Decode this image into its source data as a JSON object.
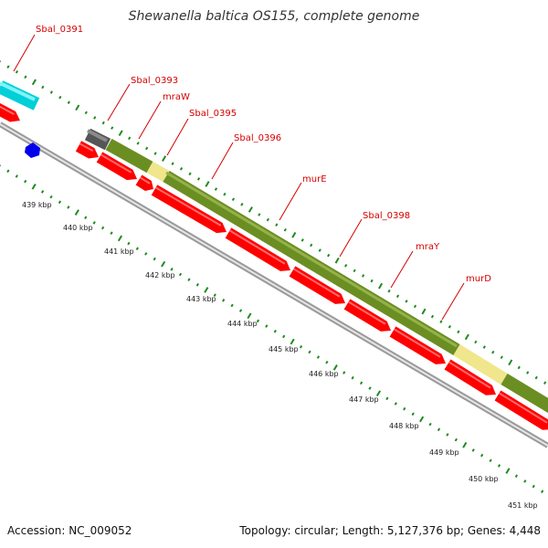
{
  "header": {
    "title": "Shewanella baltica OS155, complete genome"
  },
  "footer": {
    "accession": "Accession: NC_009052",
    "summary": "Topology: circular; Length: 5,127,376 bp; Genes: 4,448"
  },
  "colors": {
    "cds": "#ff0000",
    "cds_light": "#ff6b6b",
    "cyan_feature": "#00e5ee",
    "olive_feature": "#6b8e23",
    "pale_feature": "#f0e68c",
    "gray_feature": "#555555",
    "blue_marker": "#0000ee",
    "tick_green": "#1e8c1e",
    "label_red": "#d40000"
  },
  "genes": [
    {
      "label": "Sbal_0391"
    },
    {
      "label": "Sbal_0393"
    },
    {
      "label": "mraW"
    },
    {
      "label": "Sbal_0395"
    },
    {
      "label": "Sbal_0396"
    },
    {
      "label": "murE"
    },
    {
      "label": "Sbal_0398"
    },
    {
      "label": "mraY"
    },
    {
      "label": "murD"
    }
  ],
  "ruler": [
    {
      "label": "439 kbp"
    },
    {
      "label": "440 kbp"
    },
    {
      "label": "441 kbp"
    },
    {
      "label": "442 kbp"
    },
    {
      "label": "443 kbp"
    },
    {
      "label": "444 kbp"
    },
    {
      "label": "445 kbp"
    },
    {
      "label": "446 kbp"
    },
    {
      "label": "447 kbp"
    },
    {
      "label": "448 kbp"
    },
    {
      "label": "449 kbp"
    },
    {
      "label": "450 kbp"
    },
    {
      "label": "451 kbp"
    }
  ]
}
